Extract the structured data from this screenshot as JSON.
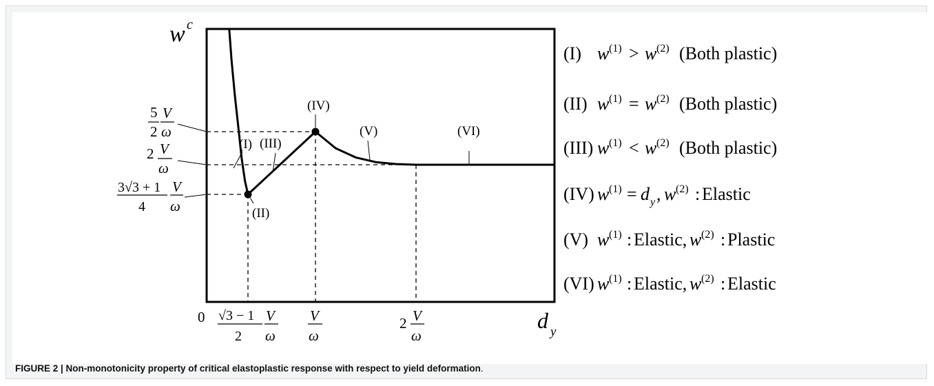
{
  "caption": {
    "label": "FIGURE 2 | Non-monotonicity property of critical elastoplastic response with respect to yield deformation",
    "end": "."
  },
  "chart_data": {
    "type": "line",
    "title": "",
    "xlabel": "d_y",
    "ylabel": "w^c",
    "x_unit": "V/ω",
    "y_unit": "V/ω",
    "x_ticks": [
      {
        "label": "0",
        "value": 0
      },
      {
        "label": "(√3 − 1)/2 · V/ω",
        "value": 0.366
      },
      {
        "label": "V/ω",
        "value": 1.0
      },
      {
        "label": "2 V/ω",
        "value": 2.0
      }
    ],
    "y_ticks": [
      {
        "label": "5/2 · V/ω",
        "value": 2.5
      },
      {
        "label": "2 · V/ω",
        "value": 2.0
      },
      {
        "label": "(3√3 + 1)/4 · V/ω",
        "value": 1.549
      }
    ],
    "xlim": [
      0,
      3.0
    ],
    "ylim": [
      0,
      4.5
    ],
    "grid": false,
    "series": [
      {
        "name": "(I)",
        "x": [
          0.2,
          0.22,
          0.25,
          0.28,
          0.31,
          0.34,
          0.366
        ],
        "y": [
          4.5,
          3.9,
          3.2,
          2.6,
          2.1,
          1.75,
          1.549
        ]
      },
      {
        "name": "(III)",
        "x": [
          0.366,
          1.0
        ],
        "y": [
          1.549,
          2.5
        ]
      },
      {
        "name": "(V)",
        "x": [
          1.0,
          1.2,
          1.4,
          1.6,
          1.8,
          2.0
        ],
        "y": [
          2.5,
          2.25,
          2.11,
          2.04,
          2.01,
          2.0
        ]
      },
      {
        "name": "(VI)",
        "x": [
          2.0,
          3.0
        ],
        "y": [
          2.0,
          2.0
        ]
      }
    ],
    "points": [
      {
        "name": "(II)",
        "x": 0.366,
        "y": 1.549
      },
      {
        "name": "(IV)",
        "x": 1.0,
        "y": 2.5
      }
    ],
    "curve_labels": [
      "(I)",
      "(II)",
      "(III)",
      "(IV)",
      "(V)",
      "(VI)"
    ],
    "legend": {
      "placement": "right",
      "entries": [
        {
          "id": "(I)",
          "text": "w(1) > w(2) (Both plastic)"
        },
        {
          "id": "(II)",
          "text": "w(1) = w(2) (Both plastic)"
        },
        {
          "id": "(III)",
          "text": "w(1) < w(2) (Both plastic)"
        },
        {
          "id": "(IV)",
          "text": "w(1) = dy, w(2) : Elastic"
        },
        {
          "id": "(V)",
          "text": "w(1) : Elastic, w(2) : Plastic"
        },
        {
          "id": "(VI)",
          "text": "w(1) : Elastic, w(2) : Elastic"
        }
      ]
    }
  }
}
